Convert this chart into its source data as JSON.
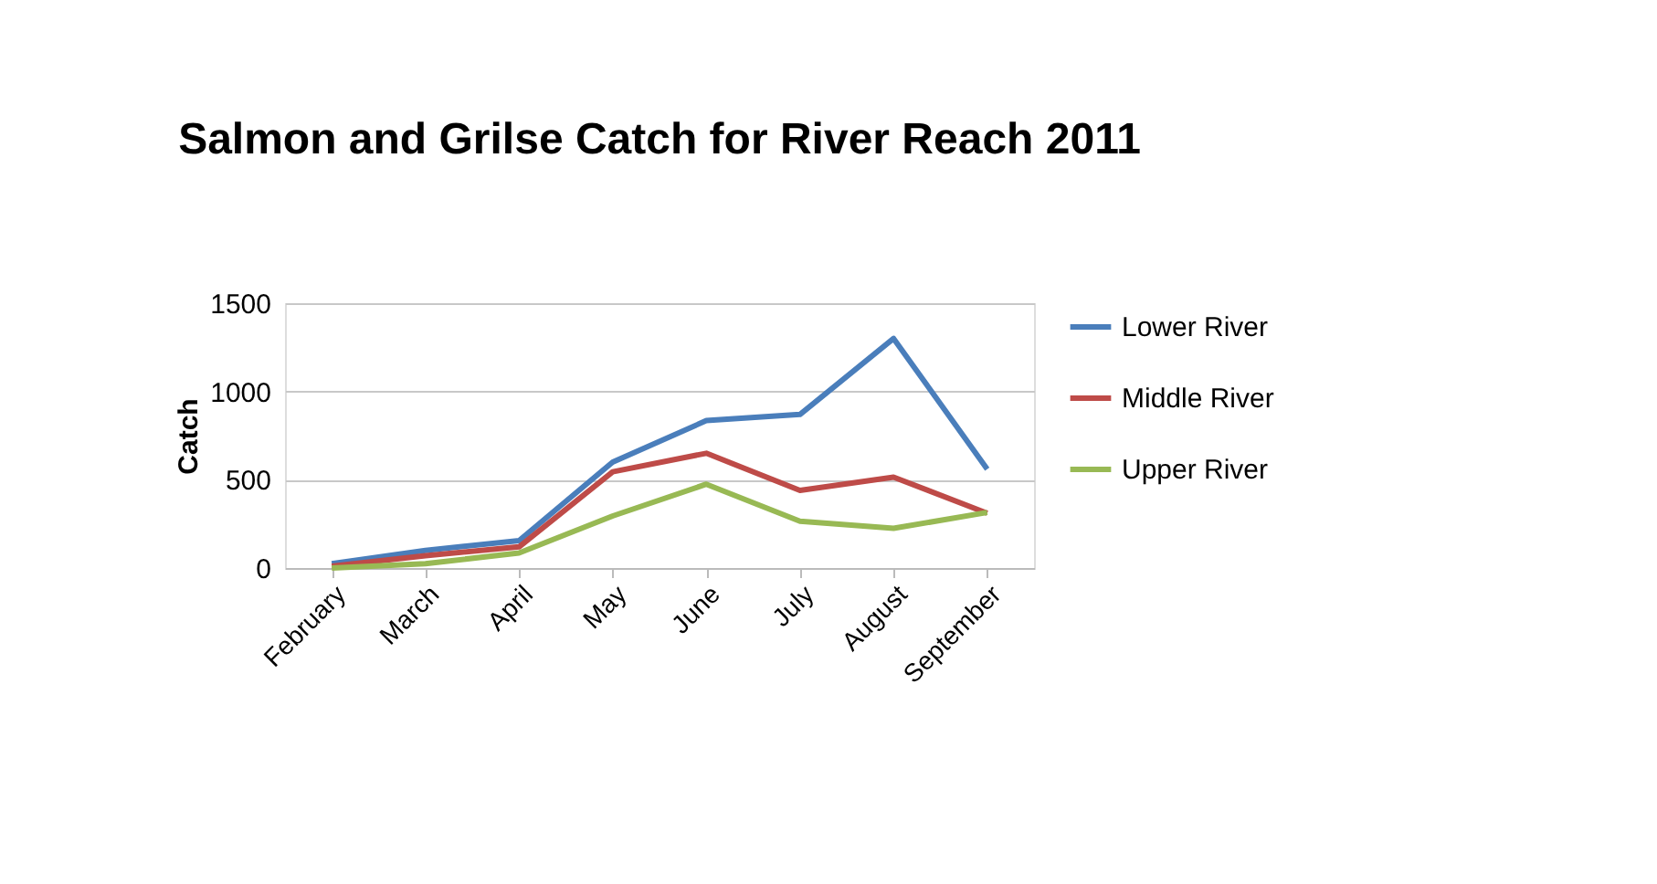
{
  "chart_data": {
    "type": "line",
    "title": "Salmon and Grilse Catch for River Reach 2011",
    "ylabel": "Catch",
    "categories": [
      "February",
      "March",
      "April",
      "May",
      "June",
      "July",
      "August",
      "September"
    ],
    "series": [
      {
        "name": "Lower River",
        "color": "#4a7ebb",
        "values": [
          25,
          100,
          155,
          600,
          835,
          870,
          1300,
          560
        ]
      },
      {
        "name": "Middle River",
        "color": "#be4b48",
        "values": [
          10,
          70,
          120,
          545,
          650,
          440,
          515,
          310
        ]
      },
      {
        "name": "Upper River",
        "color": "#98b954",
        "values": [
          0,
          25,
          85,
          295,
          475,
          265,
          225,
          315
        ]
      }
    ],
    "ylim": [
      0,
      1500
    ],
    "yticks": [
      0,
      500,
      1000,
      1500
    ],
    "grid": "y",
    "legend": "right",
    "marker": "none",
    "line_style": "solid"
  }
}
